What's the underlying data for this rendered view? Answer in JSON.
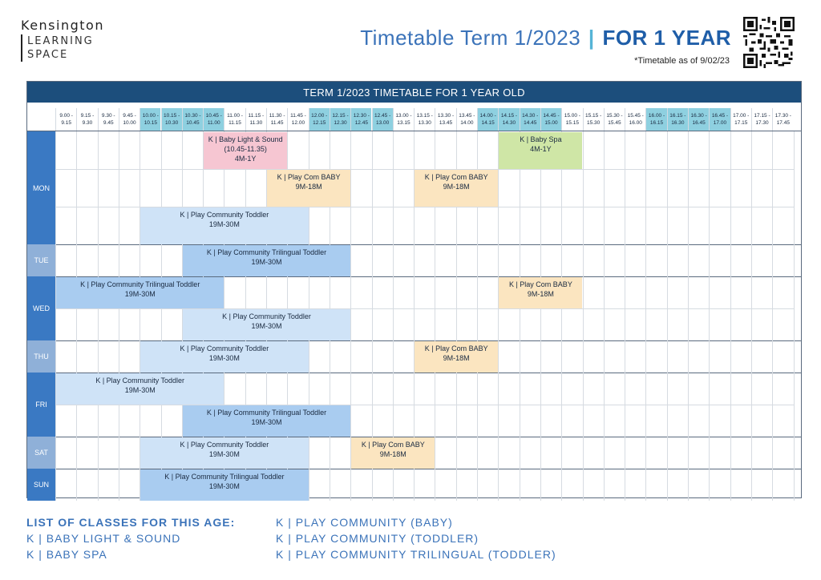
{
  "brand": {
    "line1": "Kensington",
    "line2": "LEARNING",
    "line3": "SPACE"
  },
  "header": {
    "title_main": "Timetable Term 1/2023",
    "separator": "|",
    "title_bold": "FOR 1 YEAR",
    "as_of": "*Timetable as of 9/02/23"
  },
  "timetable": {
    "title": "TERM 1/2023 TIMETABLE FOR 1 YEAR OLD",
    "slots": [
      "9.00 -\n9.15",
      "9.15 -\n9.30",
      "9.30 -\n9.45",
      "9.45 -\n10.00",
      "10.00 -\n10.15",
      "10.15 -\n10.30",
      "10.30 -\n10.45",
      "10.45 -\n11.00",
      "11.00 -\n11.15",
      "11.15 -\n11.30",
      "11.30 -\n11.45",
      "11.45 -\n12.00",
      "12.00 -\n12.15",
      "12.15 -\n12.30",
      "12.30 -\n12.45",
      "12.45 -\n13.00",
      "13.00 -\n13.15",
      "13.15 -\n13.30",
      "13.30 -\n13.45",
      "13.45 -\n14.00",
      "14.00 -\n14.15",
      "14.15 -\n14.30",
      "14.30 -\n14.45",
      "14.45 -\n15.00",
      "15.00 -\n15.15",
      "15.15 -\n15.30",
      "15.30 -\n15.45",
      "15.45 -\n16.00",
      "16.00 -\n16.15",
      "16.15 -\n16.30",
      "16.30 -\n16.45",
      "16.45 -\n17.00",
      "17.00 -\n17.15",
      "17.15 -\n17.30",
      "17.30 -\n17.45"
    ],
    "days": [
      {
        "name": "MON",
        "rows": 3,
        "color": "#3a79c3"
      },
      {
        "name": "TUE",
        "rows": 1,
        "color": "#8fb0d8"
      },
      {
        "name": "WED",
        "rows": 2,
        "color": "#3a79c3"
      },
      {
        "name": "THU",
        "rows": 1,
        "color": "#8fb0d8"
      },
      {
        "name": "FRI",
        "rows": 2,
        "color": "#3a79c3"
      },
      {
        "name": "SAT",
        "rows": 1,
        "color": "#8fb0d8"
      },
      {
        "name": "SUN",
        "rows": 1,
        "color": "#3a79c3"
      }
    ],
    "classes": [
      {
        "day": 0,
        "row": 0,
        "start": 7,
        "span": 4,
        "text": "K | Baby Light & Sound\n(10.45-11.35)\n4M-1Y",
        "color": "#f6c6d2"
      },
      {
        "day": 0,
        "row": 0,
        "start": 21,
        "span": 4,
        "text": "K | Baby Spa\n4M-1Y",
        "color": "#cfe6a6"
      },
      {
        "day": 0,
        "row": 1,
        "start": 10,
        "span": 4,
        "text": "K | Play Com BABY\n9M-18M",
        "color": "#fbe5c0"
      },
      {
        "day": 0,
        "row": 1,
        "start": 17,
        "span": 4,
        "text": "K | Play Com BABY\n9M-18M",
        "color": "#fbe5c0"
      },
      {
        "day": 0,
        "row": 2,
        "start": 4,
        "span": 8,
        "text": "K | Play Community Toddler\n19M-30M",
        "color": "#cfe3f7"
      },
      {
        "day": 1,
        "row": 0,
        "start": 6,
        "span": 8,
        "text": "K | Play Community Trilingual Toddler\n19M-30M",
        "color": "#a9ccf0"
      },
      {
        "day": 2,
        "row": 0,
        "start": 0,
        "span": 8,
        "text": "K | Play Community Trilingual Toddler\n19M-30M",
        "color": "#a9ccf0"
      },
      {
        "day": 2,
        "row": 0,
        "start": 21,
        "span": 4,
        "text": "K | Play Com BABY\n9M-18M",
        "color": "#fbe5c0"
      },
      {
        "day": 2,
        "row": 1,
        "start": 6,
        "span": 8,
        "text": "K | Play Community Toddler\n19M-30M",
        "color": "#cfe3f7"
      },
      {
        "day": 3,
        "row": 0,
        "start": 4,
        "span": 8,
        "text": "K | Play Community Toddler\n19M-30M",
        "color": "#cfe3f7"
      },
      {
        "day": 3,
        "row": 0,
        "start": 17,
        "span": 4,
        "text": "K | Play Com BABY\n9M-18M",
        "color": "#fbe5c0"
      },
      {
        "day": 4,
        "row": 0,
        "start": 0,
        "span": 8,
        "text": "K | Play Community Toddler\n19M-30M",
        "color": "#cfe3f7"
      },
      {
        "day": 4,
        "row": 1,
        "start": 6,
        "span": 8,
        "text": "K | Play Community Trilingual Toddler\n19M-30M",
        "color": "#a9ccf0"
      },
      {
        "day": 5,
        "row": 0,
        "start": 4,
        "span": 8,
        "text": "K | Play Community Toddler\n19M-30M",
        "color": "#cfe3f7"
      },
      {
        "day": 5,
        "row": 0,
        "start": 14,
        "span": 4,
        "text": "K | Play Com BABY\n9M-18M",
        "color": "#fbe5c0"
      },
      {
        "day": 6,
        "row": 0,
        "start": 4,
        "span": 8,
        "text": "K | Play Community Trilingual Toddler\n19M-30M",
        "color": "#a9ccf0"
      }
    ]
  },
  "legend": {
    "heading": "LIST OF CLASSES FOR THIS AGE:",
    "left": [
      "K | BABY LIGHT & SOUND",
      "K | BABY SPA"
    ],
    "right": [
      "K | PLAY COMMUNITY (BABY)",
      "K | PLAY COMMUNITY (TODDLER)",
      "K | PLAY COMMUNITY TRILINGUAL (TODDLER)"
    ]
  }
}
